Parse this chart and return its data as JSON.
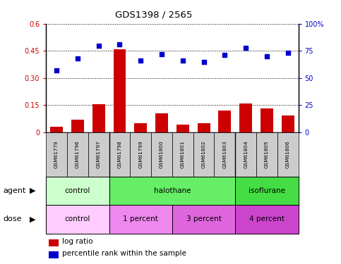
{
  "title": "GDS1398 / 2565",
  "samples": [
    "GSM61779",
    "GSM61796",
    "GSM61797",
    "GSM61798",
    "GSM61799",
    "GSM61800",
    "GSM61801",
    "GSM61802",
    "GSM61803",
    "GSM61804",
    "GSM61805",
    "GSM61806"
  ],
  "log_ratio": [
    0.03,
    0.07,
    0.155,
    0.46,
    0.05,
    0.105,
    0.04,
    0.05,
    0.12,
    0.16,
    0.13,
    0.09
  ],
  "percentile_rank": [
    57,
    68,
    80,
    81,
    66,
    72,
    66,
    65,
    71,
    78,
    70,
    73
  ],
  "bar_color": "#cc0000",
  "dot_color": "#0000cc",
  "ylim_left": [
    0,
    0.6
  ],
  "ylim_right": [
    0,
    100
  ],
  "yticks_left": [
    0,
    0.15,
    0.3,
    0.45,
    0.6
  ],
  "yticks_right": [
    0,
    25,
    50,
    75,
    100
  ],
  "ytick_labels_left": [
    "0",
    "0.15",
    "0.30",
    "0.45",
    "0.6"
  ],
  "ytick_labels_right": [
    "0",
    "25",
    "50",
    "75",
    "100%"
  ],
  "agent_groups": [
    {
      "label": "control",
      "start": 0,
      "end": 3,
      "color": "#ccffcc"
    },
    {
      "label": "halothane",
      "start": 3,
      "end": 9,
      "color": "#66ee66"
    },
    {
      "label": "isoflurane",
      "start": 9,
      "end": 12,
      "color": "#44dd44"
    }
  ],
  "dose_groups": [
    {
      "label": "control",
      "start": 0,
      "end": 3,
      "color": "#ffccff"
    },
    {
      "label": "1 percent",
      "start": 3,
      "end": 6,
      "color": "#ee88ee"
    },
    {
      "label": "3 percent",
      "start": 6,
      "end": 9,
      "color": "#dd66dd"
    },
    {
      "label": "4 percent",
      "start": 9,
      "end": 12,
      "color": "#cc44cc"
    }
  ],
  "legend_bar_label": "log ratio",
  "legend_dot_label": "percentile rank within the sample",
  "agent_label": "agent",
  "dose_label": "dose",
  "bg_sample_color": "#cccccc",
  "group_boundaries": [
    3,
    9
  ]
}
